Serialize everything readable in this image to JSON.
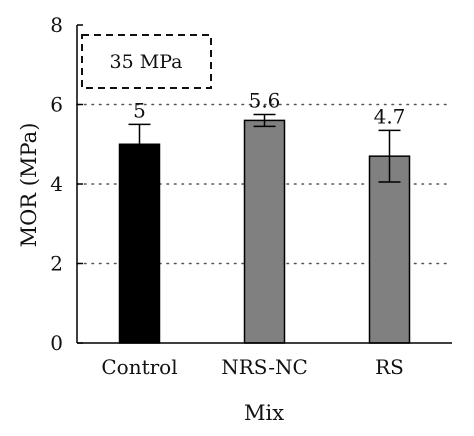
{
  "chart_data": {
    "type": "bar",
    "categories": [
      "Control",
      "NRS-NC",
      "RS"
    ],
    "values": [
      5,
      5.6,
      4.7
    ],
    "errors": [
      0.5,
      0.15,
      0.65
    ],
    "data_labels": [
      "5",
      "5.6",
      "4.7"
    ],
    "bar_colors": [
      "#000000",
      "#808080",
      "#808080"
    ],
    "title": "",
    "xlabel": "Mix",
    "ylabel": "MOR (MPa)",
    "ylim": [
      0,
      8
    ],
    "yticks": [
      0,
      2,
      4,
      6,
      8
    ],
    "ytick_labels": [
      "0",
      "2",
      "4",
      "6",
      "8"
    ],
    "grid": "horizontal dotted at 2, 4, 6",
    "annotation": "35 MPa"
  }
}
